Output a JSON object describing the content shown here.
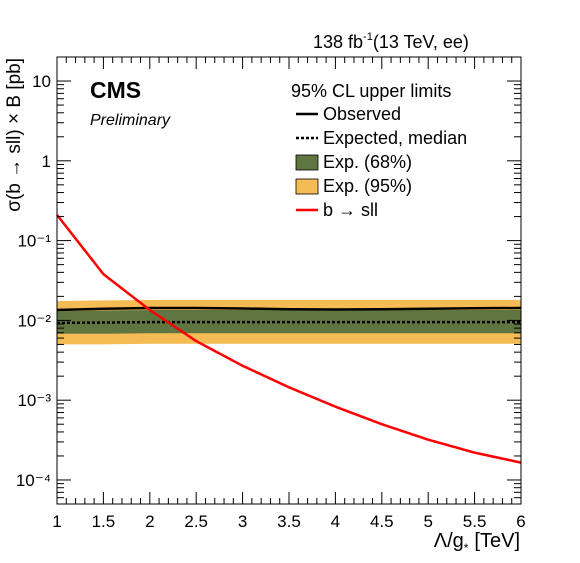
{
  "header": {
    "lumi": "138 fb",
    "lumi_sup": "-1",
    "energy": "(13 TeV, ee)"
  },
  "badge": {
    "experiment": "CMS",
    "status": "Preliminary"
  },
  "axes": {
    "xlabel_main": "Λ/g",
    "xlabel_sub": "*",
    "xlabel_unit": "[TeV]",
    "ylabel": "σ(b → sll) × B [pb]"
  },
  "legend": {
    "title": "95% CL upper limits",
    "entries": [
      "Observed",
      "Expected, median",
      "Exp. (68%)",
      "Exp. (95%)",
      "b → sll"
    ]
  },
  "colors": {
    "observed": "#000000",
    "expected": "#000000",
    "band68": "#607641",
    "band95": "#F5BB54",
    "theory": "#FF0000"
  },
  "chart_data": {
    "type": "line",
    "title": "",
    "xlabel": "Λ/g* [TeV]",
    "ylabel": "σ(b → sll) × B [pb]",
    "xlim": [
      1,
      6
    ],
    "ylim": [
      5e-05,
      20
    ],
    "yscale": "log",
    "grid": false,
    "legend_position": "top-right",
    "x_ticks": [
      "1",
      "1.5",
      "2",
      "2.5",
      "3",
      "3.5",
      "4",
      "4.5",
      "5",
      "5.5",
      "6"
    ],
    "y_ticks": [
      "10⁻⁴",
      "10⁻³",
      "10⁻²",
      "10⁻¹",
      "1",
      "10"
    ],
    "x": [
      1,
      1.5,
      2,
      2.5,
      3,
      3.5,
      4,
      4.5,
      5,
      5.5,
      6
    ],
    "series": [
      {
        "name": "Observed",
        "values": [
          0.0135,
          0.014,
          0.0143,
          0.0143,
          0.0141,
          0.0138,
          0.0137,
          0.0138,
          0.014,
          0.0142,
          0.0143
        ]
      },
      {
        "name": "Expected, median",
        "values": [
          0.0093,
          0.0094,
          0.0095,
          0.0095,
          0.0095,
          0.0095,
          0.0095,
          0.0095,
          0.0095,
          0.0095,
          0.0095
        ]
      },
      {
        "name": "Exp. (68%) low",
        "values": [
          0.0068,
          0.0068,
          0.0069,
          0.0069,
          0.0069,
          0.0069,
          0.0069,
          0.0069,
          0.0069,
          0.0069,
          0.0069
        ]
      },
      {
        "name": "Exp. (68%) high",
        "values": [
          0.013,
          0.0133,
          0.0135,
          0.0135,
          0.0135,
          0.0135,
          0.0135,
          0.0135,
          0.0135,
          0.0135,
          0.0135
        ]
      },
      {
        "name": "Exp. (95%) low",
        "values": [
          0.005,
          0.005,
          0.0051,
          0.0051,
          0.0051,
          0.0051,
          0.0051,
          0.0051,
          0.0051,
          0.0051,
          0.0051
        ]
      },
      {
        "name": "Exp. (95%) high",
        "values": [
          0.0175,
          0.0178,
          0.018,
          0.018,
          0.018,
          0.018,
          0.018,
          0.018,
          0.018,
          0.018,
          0.018
        ]
      },
      {
        "name": "b → sll",
        "values": [
          0.21,
          0.038,
          0.0135,
          0.0055,
          0.0027,
          0.00145,
          0.00083,
          0.0005,
          0.00032,
          0.00022,
          0.000165
        ]
      }
    ]
  }
}
